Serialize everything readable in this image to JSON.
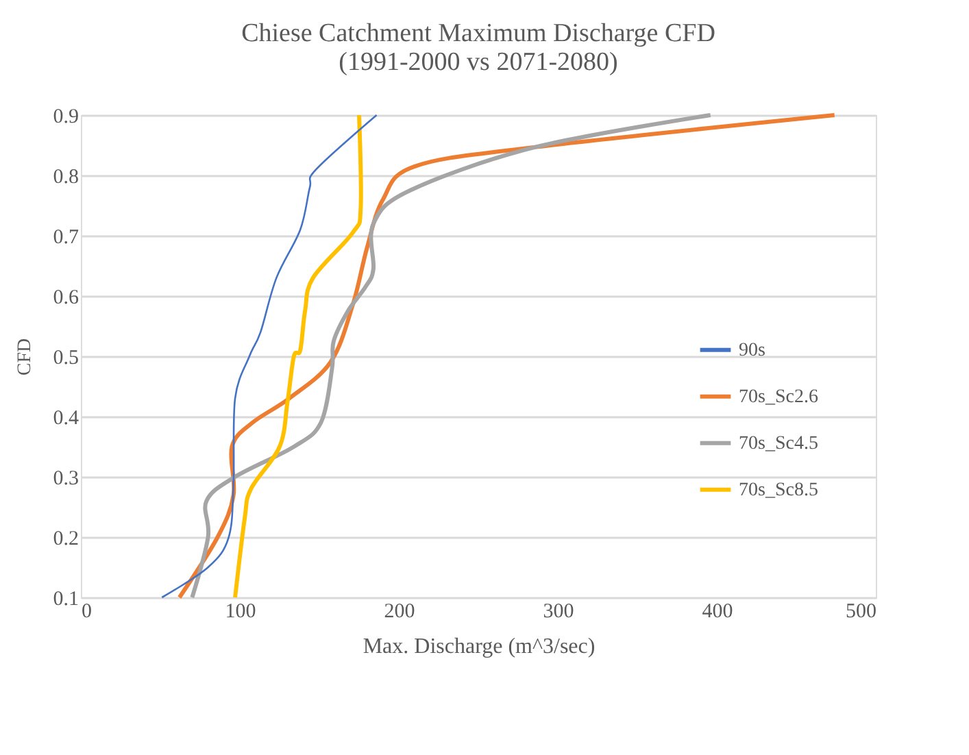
{
  "chart_data": {
    "type": "line",
    "title": [
      "Chiese Catchment Maximum Discharge CFD",
      "(1991-2000 vs 2071-2080)"
    ],
    "xlabel": "Max. Discharge (m^3/sec)",
    "ylabel": "CFD",
    "xlim": [
      0,
      500
    ],
    "xticks": [
      0,
      100,
      200,
      300,
      400,
      500
    ],
    "ylim": [
      0.1,
      0.9
    ],
    "yticks": [
      0.1,
      0.2,
      0.3,
      0.4,
      0.5,
      0.6,
      0.7,
      0.8,
      0.9
    ],
    "grid": "y",
    "legend": "right",
    "marker": "none",
    "line_style": "solid",
    "series": [
      {
        "name": "90s",
        "color": "#4472c4",
        "x": [
          51,
          80,
          93,
          96,
          97,
          106,
          113,
          123,
          138,
          144,
          148,
          186
        ],
        "values": [
          0.1,
          0.15,
          0.2,
          0.29,
          0.43,
          0.5,
          0.54,
          0.63,
          0.71,
          0.78,
          0.81,
          0.9
        ]
      },
      {
        "name": "70s_Sc2.6",
        "color": "#ed7d31",
        "x": [
          62,
          86,
          96,
          95,
          108,
          131,
          157,
          171,
          180,
          190,
          210,
          286,
          474
        ],
        "values": [
          0.1,
          0.2,
          0.27,
          0.35,
          0.39,
          0.43,
          0.49,
          0.585,
          0.68,
          0.76,
          0.815,
          0.847,
          0.9
        ]
      },
      {
        "name": "70s_Sc4.5",
        "color": "#a5a5a5",
        "x": [
          70,
          80,
          79,
          97,
          134,
          151,
          158,
          159,
          168,
          179,
          184,
          184,
          207,
          286,
          396
        ],
        "values": [
          0.1,
          0.2,
          0.26,
          0.3,
          0.35,
          0.39,
          0.48,
          0.525,
          0.575,
          0.615,
          0.645,
          0.72,
          0.775,
          0.847,
          0.9
        ]
      },
      {
        "name": "70s_Sc8.5",
        "color": "#ffc000",
        "x": [
          97,
          103,
          107,
          125,
          130,
          134,
          138,
          141,
          146,
          171,
          176,
          175
        ],
        "values": [
          0.1,
          0.23,
          0.28,
          0.35,
          0.425,
          0.5,
          0.51,
          0.575,
          0.63,
          0.705,
          0.745,
          0.9
        ]
      }
    ]
  }
}
